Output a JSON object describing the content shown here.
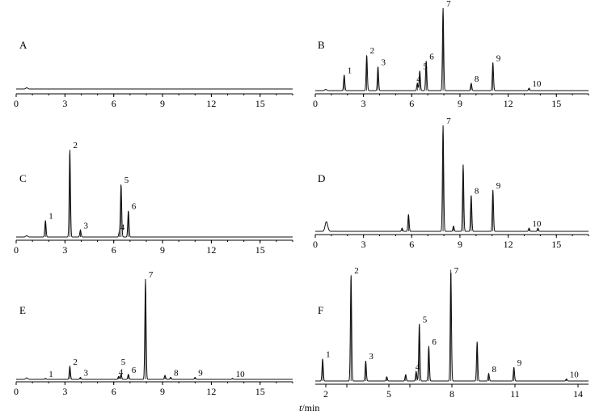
{
  "figure": {
    "xlabel_italic": "t",
    "xlabel_unit": "/min"
  },
  "chart_data": [
    {
      "type": "line",
      "panel": "A",
      "xlim": [
        0,
        17
      ],
      "xticks": [
        "0",
        "3",
        "6",
        "9",
        "12",
        "15"
      ],
      "baseline_noise": 0.002,
      "peaks": []
    },
    {
      "type": "line",
      "panel": "B",
      "xlim": [
        0,
        17
      ],
      "xticks": [
        "0",
        "3",
        "6",
        "9",
        "12",
        "15"
      ],
      "peaks": [
        {
          "label": "1",
          "x": 1.8,
          "y": 0.19
        },
        {
          "label": "2",
          "x": 3.2,
          "y": 0.43
        },
        {
          "label": "3",
          "x": 3.9,
          "y": 0.29
        },
        {
          "label": "4",
          "x": 6.35,
          "y": 0.09
        },
        {
          "label": "5",
          "x": 6.5,
          "y": 0.24
        },
        {
          "label": "6",
          "x": 6.9,
          "y": 0.36
        },
        {
          "label": "7",
          "x": 7.95,
          "y": 1.0
        },
        {
          "label": "8",
          "x": 9.7,
          "y": 0.09
        },
        {
          "label": "9",
          "x": 11.05,
          "y": 0.34
        },
        {
          "label": "10",
          "x": 13.3,
          "y": 0.03
        }
      ]
    },
    {
      "type": "line",
      "panel": "C",
      "xlim": [
        0,
        17
      ],
      "xticks": [
        "0",
        "3",
        "6",
        "9",
        "12",
        "15"
      ],
      "peaks": [
        {
          "label": "1",
          "x": 1.8,
          "y": 0.19
        },
        {
          "label": "2",
          "x": 3.3,
          "y": 1.0
        },
        {
          "label": "3",
          "x": 3.95,
          "y": 0.08
        },
        {
          "label": "4",
          "x": 6.35,
          "y": 0.06
        },
        {
          "label": "5",
          "x": 6.45,
          "y": 0.6
        },
        {
          "label": "6",
          "x": 6.9,
          "y": 0.3
        }
      ]
    },
    {
      "type": "line",
      "panel": "D",
      "xlim": [
        0,
        17
      ],
      "xticks": [
        "0",
        "3",
        "6",
        "9",
        "12",
        "15"
      ],
      "peaks": [
        {
          "label": "7",
          "x": 7.95,
          "y": 1.0
        },
        {
          "label": "8",
          "x": 9.7,
          "y": 0.34
        },
        {
          "label": "9",
          "x": 11.05,
          "y": 0.39
        },
        {
          "label": "10",
          "x": 13.3,
          "y": 0.03
        }
      ],
      "unlabeled_peaks": [
        {
          "x": 5.8,
          "y": 0.16
        },
        {
          "x": 9.2,
          "y": 0.63
        },
        {
          "x": 8.6,
          "y": 0.05
        },
        {
          "x": 5.4,
          "y": 0.03
        },
        {
          "x": 13.85,
          "y": 0.03
        }
      ]
    },
    {
      "type": "line",
      "panel": "E",
      "xlim": [
        0,
        17
      ],
      "xticks": [
        "0",
        "3",
        "6",
        "9",
        "12",
        "15"
      ],
      "peaks": [
        {
          "label": "1",
          "x": 1.8,
          "y": 0.01
        },
        {
          "label": "2",
          "x": 3.3,
          "y": 0.13
        },
        {
          "label": "3",
          "x": 3.95,
          "y": 0.02
        },
        {
          "label": "4",
          "x": 6.3,
          "y": 0.03
        },
        {
          "label": "5",
          "x": 6.45,
          "y": 0.05
        },
        {
          "label": "6",
          "x": 6.9,
          "y": 0.05
        },
        {
          "label": "7",
          "x": 7.95,
          "y": 1.0
        },
        {
          "label": "8",
          "x": 9.5,
          "y": 0.02
        },
        {
          "label": "9",
          "x": 11.0,
          "y": 0.02
        },
        {
          "label": "10",
          "x": 13.3,
          "y": 0.01
        }
      ],
      "unlabeled_peaks": [
        {
          "x": 9.15,
          "y": 0.04
        }
      ]
    },
    {
      "type": "line",
      "panel": "F",
      "xlim": [
        1.5,
        14.5
      ],
      "xticks": [
        "2",
        "3",
        "5",
        "6",
        "8",
        "11",
        "14"
      ],
      "xtick_values": [
        2,
        3,
        5,
        6,
        8,
        11,
        14
      ],
      "xtick_labels_shown": [
        "2",
        "5",
        "8",
        "11",
        "14"
      ],
      "peaks": [
        {
          "label": "1",
          "x": 1.85,
          "y": 0.21
        },
        {
          "label": "2",
          "x": 3.2,
          "y": 1.0
        },
        {
          "label": "3",
          "x": 3.9,
          "y": 0.19
        },
        {
          "label": "4",
          "x": 6.3,
          "y": 0.09
        },
        {
          "label": "5",
          "x": 6.45,
          "y": 0.54
        },
        {
          "label": "6",
          "x": 6.9,
          "y": 0.33
        },
        {
          "label": "7",
          "x": 7.95,
          "y": 1.05
        },
        {
          "label": "8",
          "x": 9.75,
          "y": 0.07
        },
        {
          "label": "9",
          "x": 10.95,
          "y": 0.13
        },
        {
          "label": "10",
          "x": 13.45,
          "y": 0.02
        }
      ],
      "unlabeled_peaks": [
        {
          "x": 9.2,
          "y": 0.37
        },
        {
          "x": 4.9,
          "y": 0.04
        },
        {
          "x": 5.8,
          "y": 0.06
        }
      ]
    }
  ]
}
